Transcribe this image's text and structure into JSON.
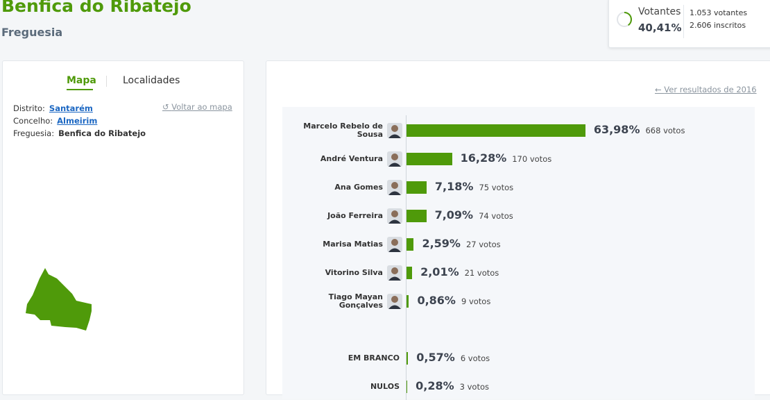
{
  "header": {
    "title": "Benfica do Ribatejo",
    "subtitle": "Freguesia"
  },
  "turnout": {
    "heading": "Votantes",
    "value": 40.41,
    "label": "40,41%",
    "voters": "1.053 votantes",
    "registered": "2.606 inscritos"
  },
  "tabs": [
    "Mapa",
    "Localidades"
  ],
  "info": {
    "rows": [
      [
        "Distrito:",
        "Santarém"
      ],
      [
        "Concelho:",
        "Almeirim"
      ],
      [
        "Freguesia:",
        "Benfica do Ribatejo"
      ]
    ],
    "back_link": "Voltar ao mapa"
  },
  "previous_link": "Ver resultados de 2016",
  "chart_data": {
    "type": "bar",
    "orientation": "horizontal",
    "color": "#4f9a0a",
    "categories": [
      "Marcelo Rebelo de Sousa",
      "André Ventura",
      "Ana Gomes",
      "João Ferreira",
      "Marisa Matias",
      "Vitorino Silva",
      "Tiago Mayan Gonçalves",
      "EM BRANCO",
      "NULOS"
    ],
    "values": [
      63.98,
      16.28,
      7.18,
      7.09,
      2.59,
      2.01,
      0.86,
      0.57,
      0.28
    ],
    "value_labels": [
      "63,98%",
      "16,28%",
      "7,18%",
      "7,09%",
      "2,59%",
      "2,01%",
      "0,86%",
      "0,57%",
      "0,28%"
    ],
    "votes": [
      "668 votos",
      "170 votos",
      "75 votos",
      "74 votos",
      "27 votos",
      "21 votos",
      "9 votos",
      "6 votos",
      "3 votos"
    ]
  }
}
